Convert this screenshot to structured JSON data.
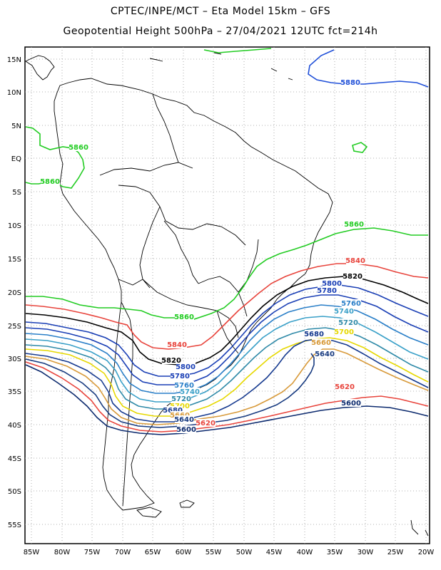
{
  "header": {
    "line1": "CPTEC/INPE/MCT –   Eta Model 15km – GFS",
    "line2": "Geopotential Height 500hPa – 27/04/2021 12UTC fct=214h"
  },
  "axes": {
    "lat_labels": [
      "15N",
      "10N",
      "5N",
      "EQ",
      "5S",
      "10S",
      "15S",
      "20S",
      "25S",
      "30S",
      "35S",
      "40S",
      "45S",
      "50S",
      "55S"
    ],
    "lon_labels": [
      "85W",
      "80W",
      "75W",
      "70W",
      "65W",
      "60W",
      "55W",
      "50W",
      "45W",
      "40W",
      "35W",
      "30W",
      "25W",
      "20W"
    ]
  },
  "contours": [
    {
      "value": "5880",
      "color": "#1f4fd8"
    },
    {
      "value": "5860",
      "color": "#22cc22"
    },
    {
      "value": "5840",
      "color": "#e8443c"
    },
    {
      "value": "5820",
      "color": "#000000"
    },
    {
      "value": "5800",
      "color": "#1a3fb5"
    },
    {
      "value": "5780",
      "color": "#1a3fb5"
    },
    {
      "value": "5760",
      "color": "#2a7fc8"
    },
    {
      "value": "5740",
      "color": "#3aa0c8"
    },
    {
      "value": "5720",
      "color": "#2f8aa8"
    },
    {
      "value": "5700",
      "color": "#e6d800"
    },
    {
      "value": "5680",
      "color": "#163a8f"
    },
    {
      "value": "5660",
      "color": "#d89a3a"
    },
    {
      "value": "5640",
      "color": "#173a80"
    },
    {
      "value": "5620",
      "color": "#e8443c"
    },
    {
      "value": "5600",
      "color": "#0c2a6e"
    }
  ],
  "labels": [
    {
      "text": "5880",
      "ref": "5880"
    },
    {
      "text": "5860",
      "ref": "5860"
    },
    {
      "text": "5860",
      "ref": "5860"
    },
    {
      "text": "5860",
      "ref": "5860"
    },
    {
      "text": "5860",
      "ref": "5860"
    },
    {
      "text": "5840",
      "ref": "5840"
    },
    {
      "text": "5840",
      "ref": "5840"
    },
    {
      "text": "5820",
      "ref": "5820"
    },
    {
      "text": "5820",
      "ref": "5820"
    },
    {
      "text": "5800",
      "ref": "5800"
    },
    {
      "text": "5800",
      "ref": "5800"
    },
    {
      "text": "5780",
      "ref": "5780"
    },
    {
      "text": "5780",
      "ref": "5780"
    },
    {
      "text": "5760",
      "ref": "5760"
    },
    {
      "text": "5760",
      "ref": "5760"
    },
    {
      "text": "5740",
      "ref": "5740"
    },
    {
      "text": "5740",
      "ref": "5740"
    },
    {
      "text": "5720",
      "ref": "5720"
    },
    {
      "text": "5720",
      "ref": "5720"
    },
    {
      "text": "5700",
      "ref": "5700"
    },
    {
      "text": "5700",
      "ref": "5700"
    },
    {
      "text": "5680",
      "ref": "5680"
    },
    {
      "text": "5680",
      "ref": "5680"
    },
    {
      "text": "5660",
      "ref": "5660"
    },
    {
      "text": "5660",
      "ref": "5660"
    },
    {
      "text": "5640",
      "ref": "5640"
    },
    {
      "text": "5640",
      "ref": "5640"
    },
    {
      "text": "5620",
      "ref": "5620"
    },
    {
      "text": "5620",
      "ref": "5620"
    },
    {
      "text": "5600",
      "ref": "5600"
    },
    {
      "text": "5600",
      "ref": "5600"
    }
  ]
}
